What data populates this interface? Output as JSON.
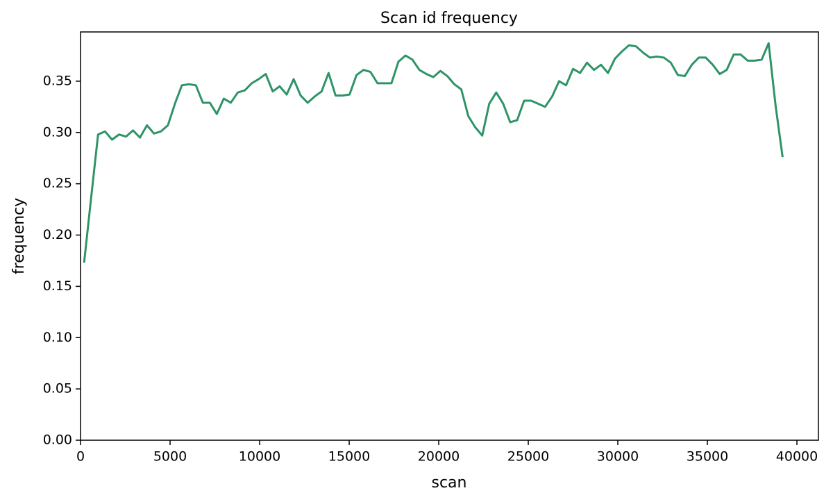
{
  "chart_data": {
    "type": "line",
    "title": "Scan id frequency",
    "x_label": "scan",
    "y_label": "frequency",
    "x": [
      200,
      590,
      980,
      1370,
      1760,
      2150,
      2540,
      2930,
      3320,
      3710,
      4100,
      4490,
      4880,
      5270,
      5660,
      6050,
      6440,
      6830,
      7220,
      7610,
      8000,
      8390,
      8780,
      9170,
      9560,
      9950,
      10340,
      10730,
      11120,
      11510,
      11900,
      12290,
      12680,
      13070,
      13460,
      13850,
      14240,
      14630,
      15020,
      15410,
      15800,
      16190,
      16580,
      16970,
      17360,
      17750,
      18140,
      18530,
      18920,
      19310,
      19700,
      20090,
      20480,
      20870,
      21260,
      21650,
      22040,
      22430,
      22820,
      23210,
      23600,
      23990,
      24380,
      24770,
      25160,
      25550,
      25940,
      26330,
      26720,
      27110,
      27500,
      27890,
      28280,
      28670,
      29060,
      29450,
      29840,
      30230,
      30620,
      31010,
      31400,
      31790,
      32180,
      32570,
      32960,
      33350,
      33740,
      34130,
      34520,
      34910,
      35300,
      35690,
      36080,
      36470,
      36860,
      37250,
      37640,
      38030,
      38420,
      38810,
      39200
    ],
    "series": [
      {
        "name": "frequency",
        "color": "#2e9467",
        "values": [
          0.173,
          0.236,
          0.298,
          0.301,
          0.293,
          0.298,
          0.296,
          0.302,
          0.295,
          0.307,
          0.299,
          0.301,
          0.307,
          0.328,
          0.346,
          0.347,
          0.346,
          0.329,
          0.329,
          0.318,
          0.333,
          0.329,
          0.339,
          0.341,
          0.348,
          0.352,
          0.357,
          0.34,
          0.345,
          0.337,
          0.352,
          0.336,
          0.329,
          0.335,
          0.34,
          0.358,
          0.336,
          0.336,
          0.337,
          0.356,
          0.361,
          0.359,
          0.348,
          0.348,
          0.348,
          0.369,
          0.375,
          0.371,
          0.361,
          0.357,
          0.354,
          0.36,
          0.355,
          0.347,
          0.342,
          0.316,
          0.305,
          0.297,
          0.328,
          0.339,
          0.328,
          0.31,
          0.312,
          0.331,
          0.331,
          0.328,
          0.325,
          0.335,
          0.35,
          0.346,
          0.362,
          0.358,
          0.368,
          0.361,
          0.366,
          0.358,
          0.372,
          0.379,
          0.385,
          0.384,
          0.378,
          0.373,
          0.374,
          0.373,
          0.368,
          0.356,
          0.355,
          0.366,
          0.373,
          0.373,
          0.366,
          0.357,
          0.361,
          0.376,
          0.376,
          0.37,
          0.37,
          0.371,
          0.387,
          0.326,
          0.276
        ]
      }
    ],
    "xlim": [
      0,
      41200
    ],
    "ylim": [
      0,
      0.398
    ],
    "xticks": [
      0,
      5000,
      10000,
      15000,
      20000,
      25000,
      30000,
      35000,
      40000
    ],
    "yticks": [
      {
        "value": 0,
        "label": "0.00"
      },
      {
        "value": 0.05,
        "label": "0.05"
      },
      {
        "value": 0.1,
        "label": "0.10"
      },
      {
        "value": 0.15,
        "label": "0.15"
      },
      {
        "value": 0.2,
        "label": "0.20"
      },
      {
        "value": 0.25,
        "label": "0.25"
      },
      {
        "value": 0.3,
        "label": "0.30"
      },
      {
        "value": 0.35,
        "label": "0.35"
      }
    ],
    "grid": false
  }
}
